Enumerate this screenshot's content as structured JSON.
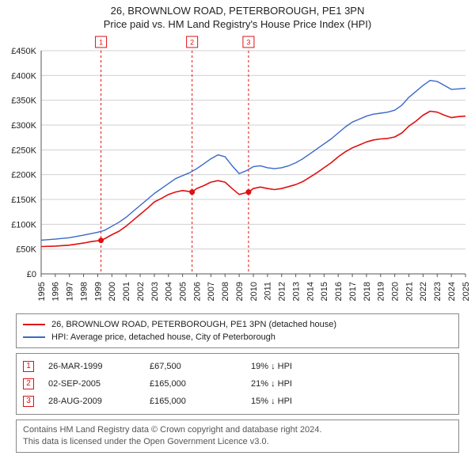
{
  "title_line1": "26, BROWNLOW ROAD, PETERBOROUGH, PE1 3PN",
  "title_line2": "Price paid vs. HM Land Registry's House Price Index (HPI)",
  "chart": {
    "type": "line",
    "background_color": "#ffffff",
    "grid_color": "#d0d0d0",
    "axis_color": "#555555",
    "tick_label_fontsize": 11,
    "x": {
      "min": 1995,
      "max": 2025,
      "tick_step": 1
    },
    "y": {
      "min": 0,
      "max": 450000,
      "tick_step": 50000,
      "prefix": "£",
      "suffix_k": "K"
    },
    "series": [
      {
        "name": "price_paid",
        "label": "26, BROWNLOW ROAD, PETERBOROUGH, PE1 3PN (detached house)",
        "color": "#e01010",
        "line_width": 1.6,
        "points": [
          [
            1995,
            55000
          ],
          [
            1996,
            56000
          ],
          [
            1997,
            58000
          ],
          [
            1998,
            62000
          ],
          [
            1998.5,
            65000
          ],
          [
            1999.23,
            67500
          ],
          [
            1999.5,
            71000
          ],
          [
            2000,
            79000
          ],
          [
            2000.5,
            86000
          ],
          [
            2001,
            96000
          ],
          [
            2001.5,
            108000
          ],
          [
            2002,
            120000
          ],
          [
            2002.5,
            132000
          ],
          [
            2003,
            145000
          ],
          [
            2003.5,
            152000
          ],
          [
            2004,
            160000
          ],
          [
            2004.5,
            165000
          ],
          [
            2005,
            168000
          ],
          [
            2005.67,
            165000
          ],
          [
            2006,
            172000
          ],
          [
            2006.5,
            178000
          ],
          [
            2007,
            185000
          ],
          [
            2007.5,
            188000
          ],
          [
            2008,
            185000
          ],
          [
            2008.5,
            172000
          ],
          [
            2009,
            160000
          ],
          [
            2009.4,
            163000
          ],
          [
            2009.66,
            165000
          ],
          [
            2010,
            172000
          ],
          [
            2010.5,
            175000
          ],
          [
            2011,
            172000
          ],
          [
            2011.5,
            170000
          ],
          [
            2012,
            172000
          ],
          [
            2012.5,
            176000
          ],
          [
            2013,
            180000
          ],
          [
            2013.5,
            186000
          ],
          [
            2014,
            195000
          ],
          [
            2014.5,
            204000
          ],
          [
            2015,
            214000
          ],
          [
            2015.5,
            224000
          ],
          [
            2016,
            236000
          ],
          [
            2016.5,
            246000
          ],
          [
            2017,
            254000
          ],
          [
            2017.5,
            260000
          ],
          [
            2018,
            266000
          ],
          [
            2018.5,
            270000
          ],
          [
            2019,
            272000
          ],
          [
            2019.5,
            273000
          ],
          [
            2020,
            276000
          ],
          [
            2020.5,
            284000
          ],
          [
            2021,
            298000
          ],
          [
            2021.5,
            308000
          ],
          [
            2022,
            320000
          ],
          [
            2022.5,
            328000
          ],
          [
            2023,
            326000
          ],
          [
            2023.5,
            320000
          ],
          [
            2024,
            315000
          ],
          [
            2024.5,
            317000
          ],
          [
            2025,
            318000
          ]
        ]
      },
      {
        "name": "hpi",
        "label": "HPI: Average price, detached house, City of Peterborough",
        "color": "#3a68c8",
        "line_width": 1.4,
        "points": [
          [
            1995,
            68000
          ],
          [
            1996,
            70000
          ],
          [
            1997,
            73000
          ],
          [
            1998,
            78000
          ],
          [
            1999,
            84000
          ],
          [
            1999.5,
            88000
          ],
          [
            2000,
            96000
          ],
          [
            2000.5,
            104000
          ],
          [
            2001,
            114000
          ],
          [
            2001.5,
            126000
          ],
          [
            2002,
            138000
          ],
          [
            2002.5,
            150000
          ],
          [
            2003,
            162000
          ],
          [
            2003.5,
            172000
          ],
          [
            2004,
            182000
          ],
          [
            2004.5,
            192000
          ],
          [
            2005,
            198000
          ],
          [
            2005.5,
            204000
          ],
          [
            2006,
            212000
          ],
          [
            2006.5,
            222000
          ],
          [
            2007,
            232000
          ],
          [
            2007.5,
            240000
          ],
          [
            2008,
            236000
          ],
          [
            2008.5,
            218000
          ],
          [
            2009,
            202000
          ],
          [
            2009.5,
            208000
          ],
          [
            2010,
            216000
          ],
          [
            2010.5,
            218000
          ],
          [
            2011,
            214000
          ],
          [
            2011.5,
            212000
          ],
          [
            2012,
            214000
          ],
          [
            2012.5,
            218000
          ],
          [
            2013,
            224000
          ],
          [
            2013.5,
            232000
          ],
          [
            2014,
            242000
          ],
          [
            2014.5,
            252000
          ],
          [
            2015,
            262000
          ],
          [
            2015.5,
            272000
          ],
          [
            2016,
            284000
          ],
          [
            2016.5,
            296000
          ],
          [
            2017,
            306000
          ],
          [
            2017.5,
            312000
          ],
          [
            2018,
            318000
          ],
          [
            2018.5,
            322000
          ],
          [
            2019,
            324000
          ],
          [
            2019.5,
            326000
          ],
          [
            2020,
            330000
          ],
          [
            2020.5,
            340000
          ],
          [
            2021,
            356000
          ],
          [
            2021.5,
            368000
          ],
          [
            2022,
            380000
          ],
          [
            2022.5,
            390000
          ],
          [
            2023,
            388000
          ],
          [
            2023.5,
            380000
          ],
          [
            2024,
            372000
          ],
          [
            2024.5,
            373000
          ],
          [
            2025,
            374000
          ]
        ]
      }
    ],
    "sale_markers": [
      {
        "index": "1",
        "x": 1999.23,
        "y": 67500,
        "color": "#e01010"
      },
      {
        "index": "2",
        "x": 2005.67,
        "y": 165000,
        "color": "#e01010"
      },
      {
        "index": "3",
        "x": 2009.66,
        "y": 165000,
        "color": "#e01010"
      }
    ],
    "marker_vline_color": "#e01010",
    "marker_vline_dash": "3,3",
    "marker_box_border": "#e01010",
    "marker_box_fill": "#ffffff",
    "marker_dot_fill": "#e01010",
    "marker_dot_radius": 3.5
  },
  "legend": {
    "items": [
      {
        "color": "#e01010",
        "label": "26, BROWNLOW ROAD, PETERBOROUGH, PE1 3PN (detached house)"
      },
      {
        "color": "#3a68c8",
        "label": "HPI: Average price, detached house, City of Peterborough"
      }
    ]
  },
  "sales_table": {
    "rows": [
      {
        "index": "1",
        "date": "26-MAR-1999",
        "price": "£67,500",
        "delta": "19% ↓ HPI"
      },
      {
        "index": "2",
        "date": "02-SEP-2005",
        "price": "£165,000",
        "delta": "21% ↓ HPI"
      },
      {
        "index": "3",
        "date": "28-AUG-2009",
        "price": "£165,000",
        "delta": "15% ↓ HPI"
      }
    ],
    "marker_color": "#e01010"
  },
  "footer": {
    "line1": "Contains HM Land Registry data © Crown copyright and database right 2024.",
    "line2": "This data is licensed under the Open Government Licence v3.0."
  }
}
